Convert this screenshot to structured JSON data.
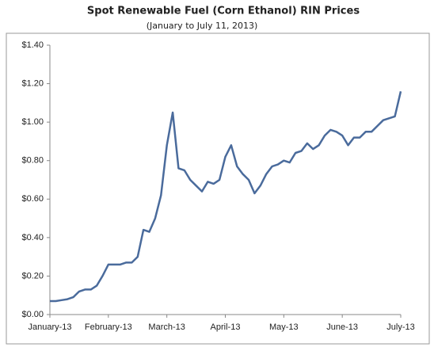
{
  "chart_data": {
    "type": "line",
    "title": "Spot Renewable Fuel (Corn Ethanol) RIN Prices",
    "subtitle": "(January to July 11, 2013)",
    "categories": [
      "January-13",
      null,
      null,
      null,
      null,
      null,
      null,
      null,
      null,
      null,
      "February-13",
      null,
      null,
      null,
      null,
      null,
      null,
      null,
      null,
      null,
      "March-13",
      null,
      null,
      null,
      null,
      null,
      null,
      null,
      null,
      null,
      "April-13",
      null,
      null,
      null,
      null,
      null,
      null,
      null,
      null,
      null,
      "May-13",
      null,
      null,
      null,
      null,
      null,
      null,
      null,
      null,
      null,
      "June-13",
      null,
      null,
      null,
      null,
      null,
      null,
      null,
      null,
      null,
      "July-13"
    ],
    "series": [
      {
        "color": "#4a6b9c",
        "values": [
          0.07,
          0.07,
          0.075,
          0.08,
          0.09,
          0.12,
          0.13,
          0.13,
          0.15,
          0.2,
          0.26,
          0.26,
          0.26,
          0.27,
          0.27,
          0.3,
          0.44,
          0.43,
          0.5,
          0.62,
          0.88,
          1.05,
          0.76,
          0.75,
          0.7,
          0.67,
          0.64,
          0.69,
          0.68,
          0.7,
          0.82,
          0.88,
          0.77,
          0.73,
          0.7,
          0.63,
          0.67,
          0.73,
          0.77,
          0.78,
          0.8,
          0.79,
          0.84,
          0.85,
          0.89,
          0.86,
          0.88,
          0.93,
          0.96,
          0.95,
          0.93,
          0.88,
          0.92,
          0.92,
          0.95,
          0.95,
          0.98,
          1.01,
          1.02,
          1.03,
          1.16
        ]
      }
    ],
    "ylim": [
      0,
      1.4
    ],
    "yticks": [
      {
        "value": 0,
        "label": "$0.00"
      },
      {
        "value": 0.2,
        "label": "$0.20"
      },
      {
        "value": 0.4,
        "label": "$0.40"
      },
      {
        "value": 0.6,
        "label": "$0.60"
      },
      {
        "value": 0.8,
        "label": "$0.80"
      },
      {
        "value": 1,
        "label": "$1.00"
      },
      {
        "value": 1.2,
        "label": "$1.20"
      },
      {
        "value": 1.4,
        "label": "$1.40"
      }
    ],
    "grid": false
  }
}
